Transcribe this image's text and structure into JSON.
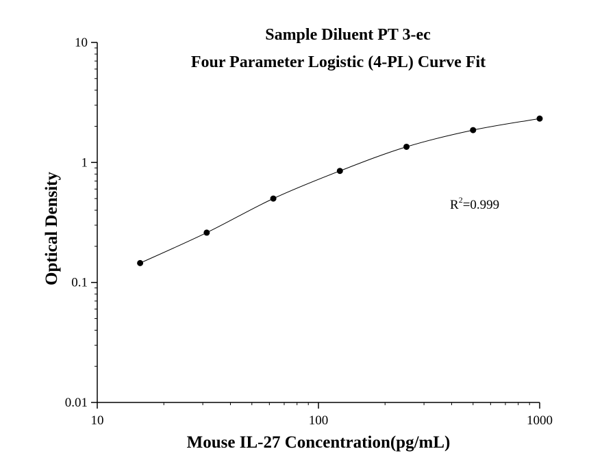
{
  "chart_data": {
    "type": "scatter",
    "title": "Sample Diluent PT 3-ec",
    "subtitle": "Four Parameter Logistic (4-PL) Curve Fit",
    "xlabel": "Mouse IL-27 Concentration(pg/mL)",
    "ylabel": "Optical Density",
    "xscale": "log",
    "yscale": "log",
    "xlim": [
      10,
      1000
    ],
    "ylim": [
      0.01,
      10
    ],
    "x_ticks": [
      "10",
      "100",
      "1000"
    ],
    "y_ticks": [
      "0.01",
      "0.1",
      "1",
      "10"
    ],
    "grid": false,
    "legend": "none",
    "series": [
      {
        "points": [
          {
            "x": 15.625,
            "y": 0.145
          },
          {
            "x": 31.25,
            "y": 0.26
          },
          {
            "x": 62.5,
            "y": 0.5
          },
          {
            "x": 125,
            "y": 0.85
          },
          {
            "x": 250,
            "y": 1.35
          },
          {
            "x": 500,
            "y": 1.86
          },
          {
            "x": 1000,
            "y": 2.32
          }
        ]
      }
    ],
    "fit": {
      "model": "4-PL"
    },
    "annotation": {
      "base": "R",
      "sup": "2",
      "rest": "=0.999"
    }
  }
}
